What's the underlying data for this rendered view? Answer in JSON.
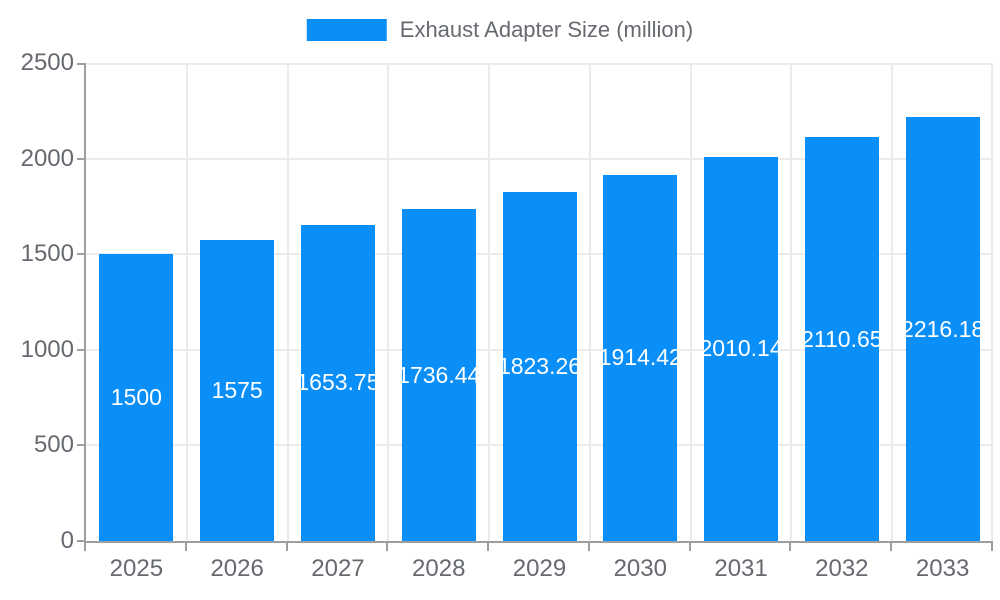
{
  "legend": {
    "label": "Exhaust Adapter Size (million)"
  },
  "colors": {
    "bar": "#0a8ff9",
    "grid": "#ebebeb",
    "axis": "#9e9e9e",
    "tick_text": "#666a70",
    "value_text": "#ffffff",
    "background": "#ffffff"
  },
  "chart_data": {
    "type": "bar",
    "title": "Exhaust Adapter Size (million)",
    "categories": [
      "2025",
      "2026",
      "2027",
      "2028",
      "2029",
      "2030",
      "2031",
      "2032",
      "2033"
    ],
    "values": [
      1500,
      1575,
      1653.75,
      1736.44,
      1823.26,
      1914.42,
      2010.14,
      2110.65,
      2216.18
    ],
    "value_labels": [
      "1500",
      "1575",
      "1653.75",
      "1736.44",
      "1823.26",
      "1914.42",
      "2010.14",
      "2110.65",
      "2216.18"
    ],
    "xlabel": "",
    "ylabel": "",
    "ylim": [
      0,
      2500
    ],
    "yticks": [
      0,
      500,
      1000,
      1500,
      2000,
      2500
    ],
    "grid": true,
    "legend_position": "top",
    "value_label_position": "center-inside-bar"
  }
}
